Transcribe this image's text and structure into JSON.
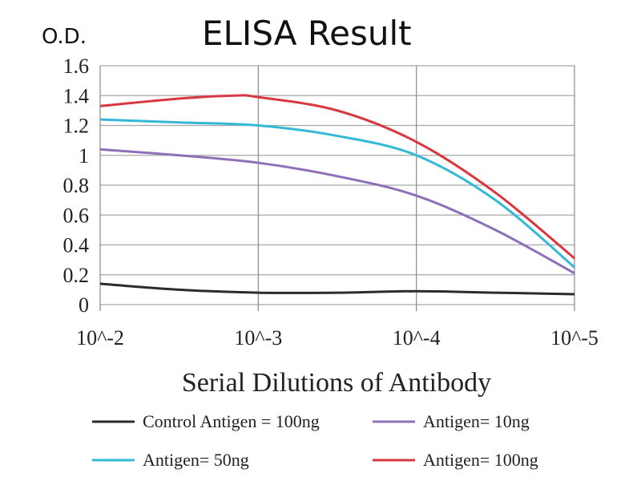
{
  "chart_data": {
    "type": "line",
    "title": "ELISA Result",
    "ylabel": "O.D.",
    "xlabel": "Serial Dilutions of Antibody",
    "categories": [
      "10^-2",
      "10^-3",
      "10^-4",
      "10^-5"
    ],
    "y_ticks": [
      "0",
      "0.2",
      "0.4",
      "0.6",
      "0.8",
      "1",
      "1.2",
      "1.4",
      "1.6"
    ],
    "ylim": [
      0,
      1.6
    ],
    "grid": true,
    "legend_position": "bottom",
    "series": [
      {
        "name": "Control Antigen = 100ng",
        "color": "#2b2b2b",
        "x": [
          0,
          0.5,
          1,
          1.5,
          2,
          2.5,
          3
        ],
        "values": [
          0.14,
          0.1,
          0.08,
          0.08,
          0.09,
          0.08,
          0.07
        ]
      },
      {
        "name": "Antigen= 10ng",
        "color": "#8e6fb8",
        "x": [
          0,
          0.5,
          1,
          1.5,
          2,
          2.5,
          3
        ],
        "values": [
          1.04,
          1.0,
          0.95,
          0.86,
          0.73,
          0.5,
          0.21
        ]
      },
      {
        "name": "Antigen= 50ng",
        "color": "#33b8d6",
        "x": [
          0,
          0.5,
          1,
          1.5,
          2,
          2.5,
          3
        ],
        "values": [
          1.24,
          1.22,
          1.2,
          1.13,
          1.0,
          0.7,
          0.25
        ]
      },
      {
        "name": "Antigen= 100ng",
        "color": "#d6393f",
        "x": [
          0,
          0.5,
          0.85,
          1,
          1.5,
          2,
          2.5,
          3
        ],
        "values": [
          1.33,
          1.38,
          1.4,
          1.39,
          1.3,
          1.09,
          0.75,
          0.31
        ]
      }
    ]
  }
}
